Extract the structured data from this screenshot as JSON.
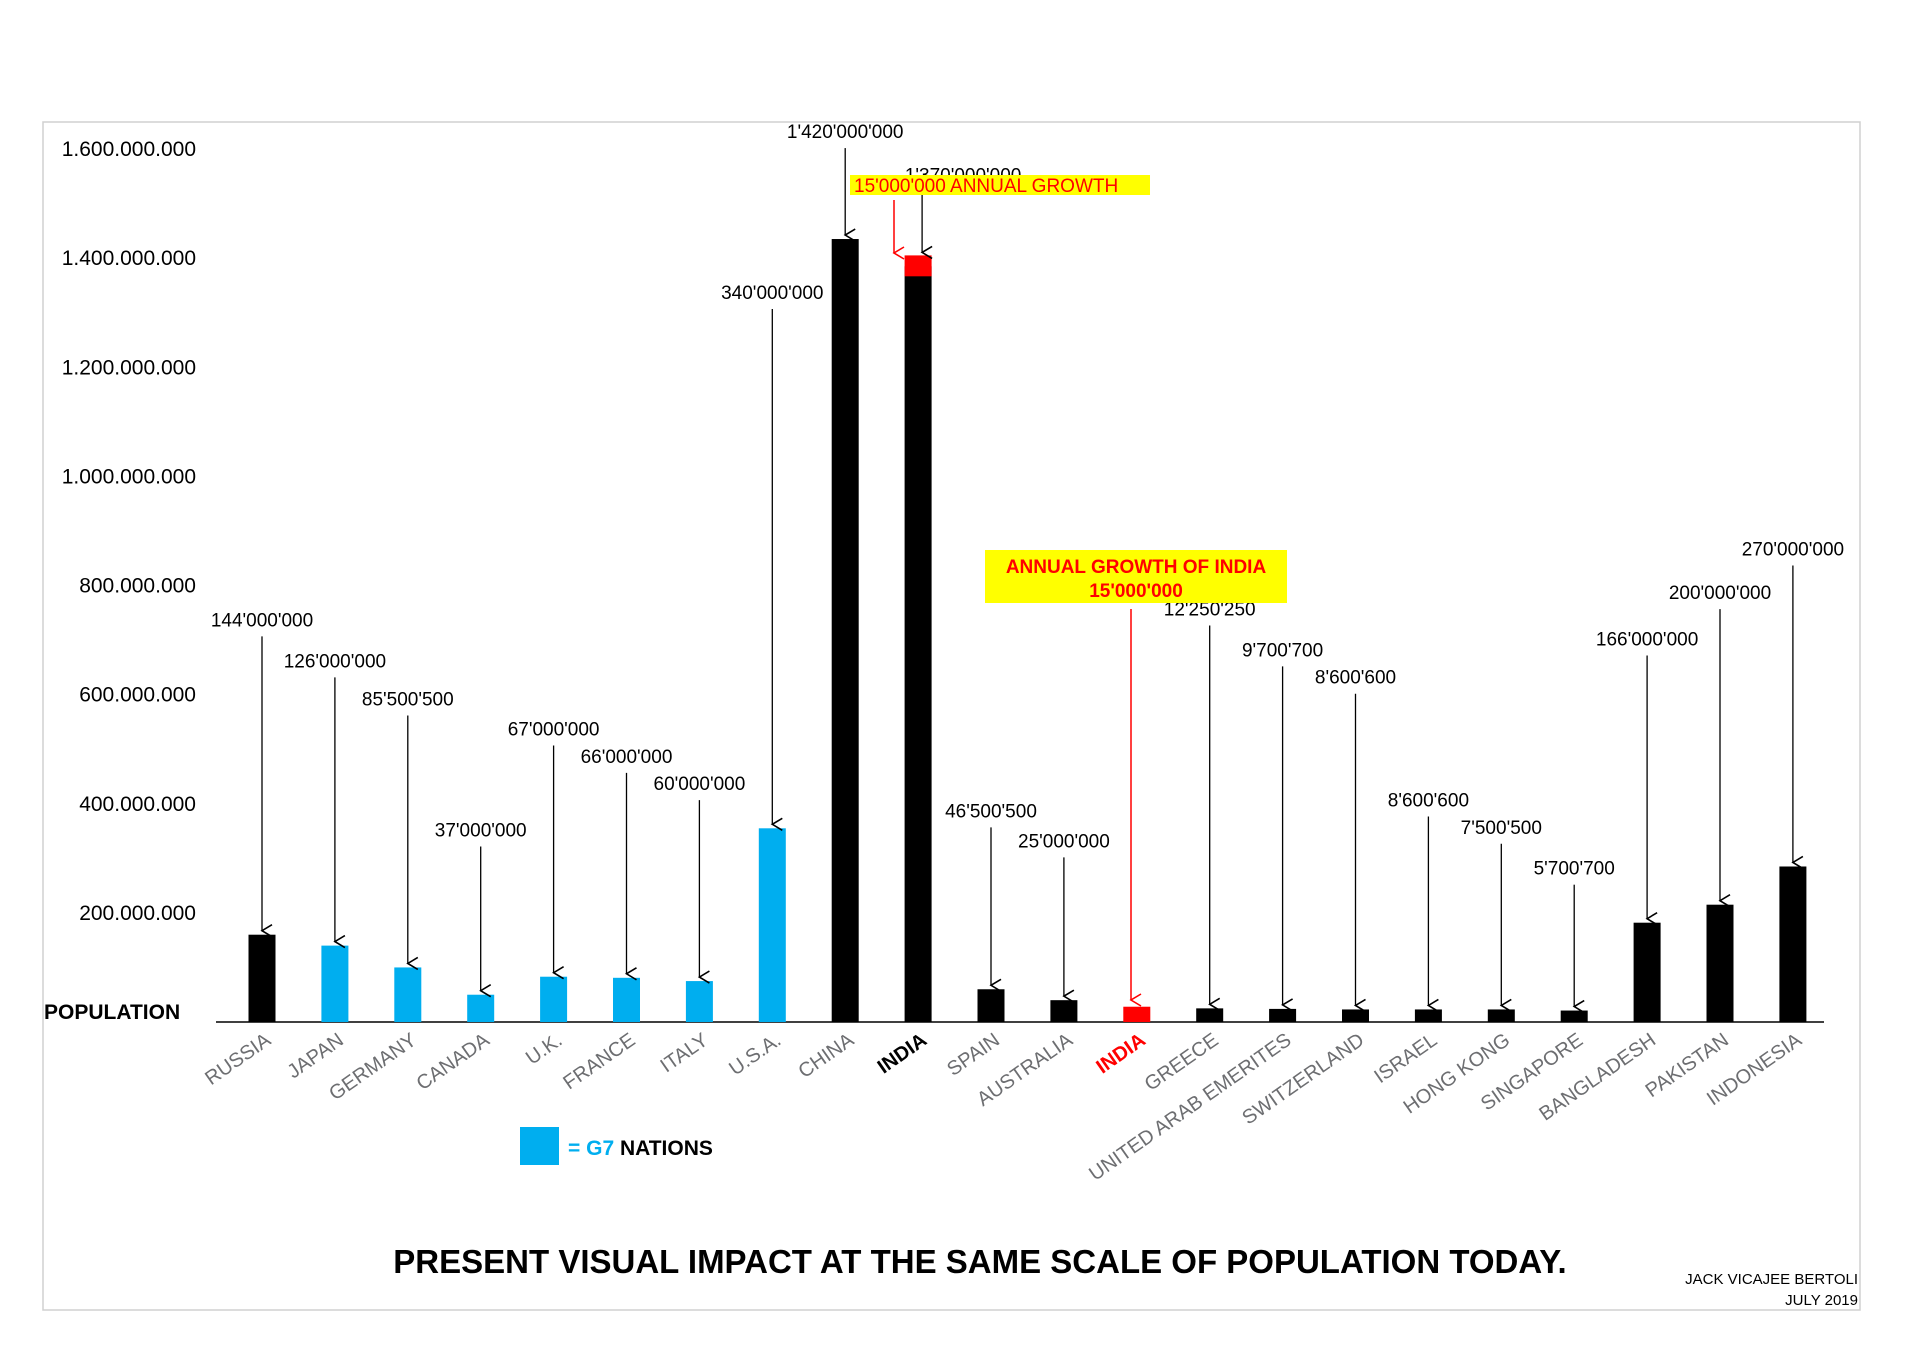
{
  "chart_data": {
    "type": "bar",
    "title": "PRESENT VISUAL IMPACT AT THE SAME SCALE OF POPULATION TODAY.",
    "ylabel": "POPULATION",
    "ylim": [
      0,
      1600000000
    ],
    "yticks": [
      {
        "value": 200000000,
        "label": "200.000.000"
      },
      {
        "value": 400000000,
        "label": "400.000.000"
      },
      {
        "value": 600000000,
        "label": "600.000.000"
      },
      {
        "value": 800000000,
        "label": "800.000.000"
      },
      {
        "value": 1000000000,
        "label": "1.000.000.000"
      },
      {
        "value": 1200000000,
        "label": "1.200.000.000"
      },
      {
        "value": 1400000000,
        "label": "1.400.000.000"
      },
      {
        "value": 1600000000,
        "label": "1.600.000.000"
      }
    ],
    "categories": [
      {
        "name": "RUSSIA",
        "value": 160000000,
        "label": "144'000'000",
        "group": "other",
        "anno_value": 725000000
      },
      {
        "name": "JAPAN",
        "value": 140000000,
        "label": "126'000'000",
        "group": "g7",
        "anno_value": 650000000
      },
      {
        "name": "GERMANY",
        "value": 100000000,
        "label": "85'500'500",
        "group": "g7",
        "anno_value": 580000000
      },
      {
        "name": "CANADA",
        "value": 50000000,
        "label": "37'000'000",
        "group": "g7",
        "anno_value": 340000000
      },
      {
        "name": "U.K.",
        "value": 83000000,
        "label": "67'000'000",
        "group": "g7",
        "anno_value": 525000000
      },
      {
        "name": "FRANCE",
        "value": 81000000,
        "label": "66'000'000",
        "group": "g7",
        "anno_value": 475000000
      },
      {
        "name": "ITALY",
        "value": 75000000,
        "label": "60'000'000",
        "group": "g7",
        "anno_value": 425000000
      },
      {
        "name": "U.S.A.",
        "value": 355000000,
        "label": "340'000'000",
        "group": "g7",
        "anno_value": 1325000000
      },
      {
        "name": "CHINA",
        "value": 1435000000,
        "label": "1'420'000'000",
        "group": "other",
        "anno_value": 1620000000
      },
      {
        "name": "INDIA",
        "value": 1385000000,
        "label": "1'370'000'000",
        "group": "india",
        "anno_value": 1540000000
      },
      {
        "name": "SPAIN",
        "value": 60000000,
        "label": "46'500'500",
        "group": "other",
        "anno_value": 375000000
      },
      {
        "name": "AUSTRALIA",
        "value": 40000000,
        "label": "25'000'000",
        "group": "other",
        "anno_value": 320000000
      },
      {
        "name": "INDIA",
        "value": 28000000,
        "label": "",
        "group": "india-growth",
        "anno_value": 0
      },
      {
        "name": "GREECE",
        "value": 25000000,
        "label": "12'250'250",
        "group": "other",
        "anno_value": 745000000
      },
      {
        "name": "UNITED ARAB EMERITES",
        "value": 24000000,
        "label": "9'700'700",
        "group": "other",
        "anno_value": 670000000
      },
      {
        "name": "SWITZERLAND",
        "value": 23000000,
        "label": "8'600'600",
        "group": "other",
        "anno_value": 620000000
      },
      {
        "name": "ISRAEL",
        "value": 23000000,
        "label": "8'600'600",
        "group": "other",
        "anno_value": 395000000
      },
      {
        "name": "HONG KONG",
        "value": 23000000,
        "label": "7'500'500",
        "group": "other",
        "anno_value": 345000000
      },
      {
        "name": "SINGAPORE",
        "value": 21000000,
        "label": "5'700'700",
        "group": "other",
        "anno_value": 270000000
      },
      {
        "name": "BANGLADESH",
        "value": 182000000,
        "label": "166'000'000",
        "group": "other",
        "anno_value": 690000000
      },
      {
        "name": "PAKISTAN",
        "value": 215000000,
        "label": "200'000'000",
        "group": "other",
        "anno_value": 775000000
      },
      {
        "name": "INDONESIA",
        "value": 285000000,
        "label": "270'000'000",
        "group": "other",
        "anno_value": 855000000
      }
    ],
    "india_growth_top": 1405000000,
    "growth_label_top": "15'000'000 ANNUAL GROWTH",
    "growth_box": {
      "line1": "ANNUAL GROWTH OF INDIA",
      "line2": "15'000'000"
    },
    "legend": {
      "prefix": "= ",
      "g7": "G7",
      "suffix": " NATIONS"
    },
    "author": "JACK VICAJEE BERTOLI",
    "date": "JULY 2019",
    "colors": {
      "g7": "#00AEEF",
      "other": "#000000",
      "india_growth": "#FF0000",
      "highlight": "#FFFF00",
      "red_text": "#FF0000",
      "axis_label_gray": "#6D6E71"
    }
  }
}
